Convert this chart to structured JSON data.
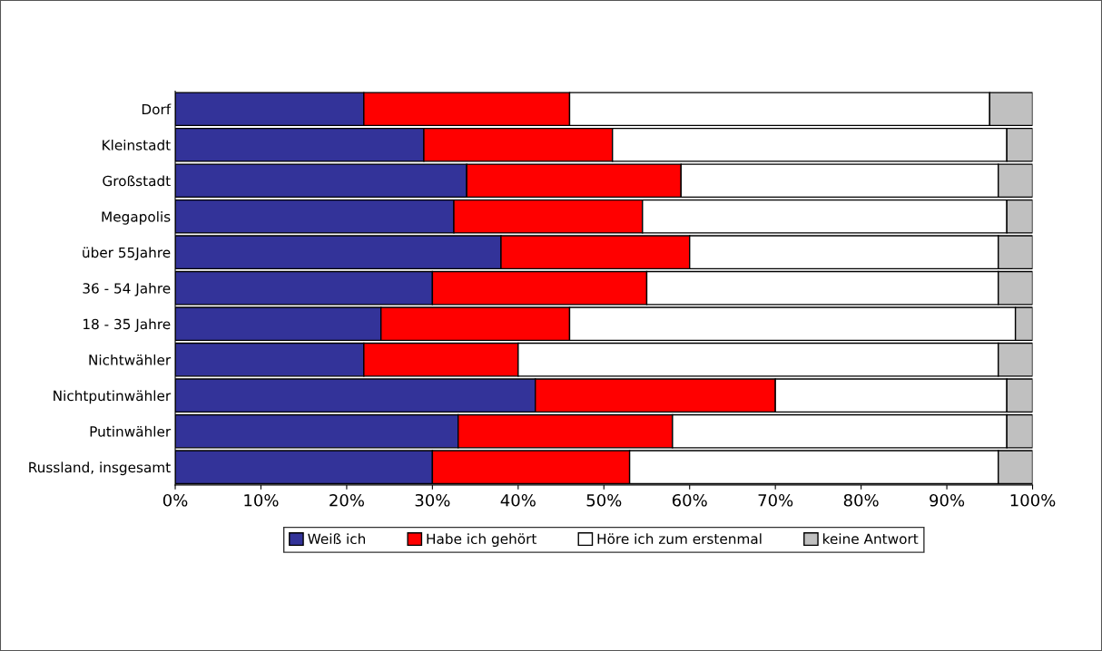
{
  "chart_data": {
    "type": "bar",
    "orientation": "horizontal",
    "stacked": true,
    "categories": [
      "Dorf",
      "Kleinstadt",
      "Großstadt",
      "Megapolis",
      "über 55Jahre",
      "36 - 54 Jahre",
      "18 - 35 Jahre",
      "Nichtwähler",
      "Nichtputinwähler",
      "Putinwähler",
      "Russland, insgesamt"
    ],
    "series": [
      {
        "name": "Weiß ich",
        "color": "#333399",
        "values": [
          22,
          29,
          34,
          32.5,
          38,
          30,
          24,
          22,
          42,
          33,
          30
        ]
      },
      {
        "name": "Habe ich gehört",
        "color": "#ff0000",
        "values": [
          24,
          22,
          25,
          22,
          22,
          25,
          22,
          18,
          28,
          25,
          23
        ]
      },
      {
        "name": "Höre ich zum erstenmal",
        "color": "#ffffff",
        "values": [
          49,
          46,
          37,
          42.5,
          36,
          41,
          52,
          56,
          27,
          39,
          43
        ]
      },
      {
        "name": "keine Antwort",
        "color": "#c0c0c0",
        "values": [
          5,
          3,
          4,
          3,
          4,
          4,
          2,
          4,
          3,
          3,
          4
        ]
      }
    ],
    "xlim": [
      0,
      100
    ],
    "xticks": [
      {
        "value": 0,
        "label": "0%"
      },
      {
        "value": 10,
        "label": "10%"
      },
      {
        "value": 20,
        "label": "20%"
      },
      {
        "value": 30,
        "label": "30%"
      },
      {
        "value": 40,
        "label": "40%"
      },
      {
        "value": 50,
        "label": "50%"
      },
      {
        "value": 60,
        "label": "60%"
      },
      {
        "value": 70,
        "label": "70%"
      },
      {
        "value": 80,
        "label": "80%"
      },
      {
        "value": 90,
        "label": "90%"
      },
      {
        "value": 100,
        "label": "100%"
      }
    ],
    "grid": false,
    "legend": "bottom"
  }
}
